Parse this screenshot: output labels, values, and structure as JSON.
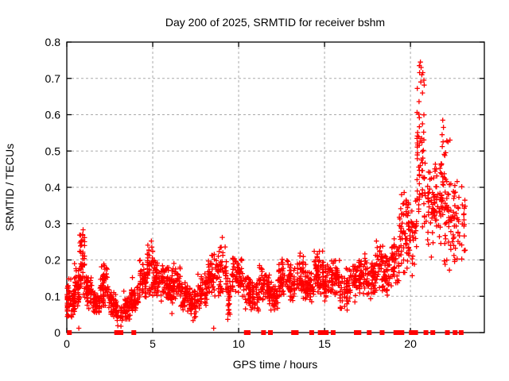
{
  "page": {
    "background": "#ffffff"
  },
  "chart_data": {
    "type": "scatter",
    "title": "Day 200 of 2025, SRMTID for receiver bshm",
    "xlabel": "GPS time / hours",
    "ylabel": "SRMTID / TECUs",
    "xlim": [
      0,
      24.3
    ],
    "ylim": [
      0,
      0.8
    ],
    "x_ticks": [
      0,
      5,
      10,
      15,
      20
    ],
    "y_ticks": [
      0,
      0.1,
      0.2,
      0.3,
      0.4,
      0.5,
      0.6,
      0.7,
      0.8
    ],
    "grid": "dashed",
    "legend": "none",
    "marker": "plus",
    "marker_color": "#ff0000",
    "grid_color": "#aaaaaa",
    "border_color": "#000000",
    "text_color": "#000000",
    "seed": 20250200,
    "clusters_format": "[hour_start, hour_end, value_min, value_max, point_count] — envelope of the dense + marker cloud read from the plot",
    "clusters": [
      [
        0.0,
        0.12,
        0.02,
        0.17,
        25
      ],
      [
        0.12,
        0.45,
        0.04,
        0.13,
        40
      ],
      [
        0.45,
        0.75,
        0.06,
        0.2,
        40
      ],
      [
        0.75,
        1.05,
        0.1,
        0.28,
        45
      ],
      [
        1.05,
        1.45,
        0.06,
        0.17,
        50
      ],
      [
        1.45,
        1.95,
        0.04,
        0.13,
        55
      ],
      [
        1.95,
        2.45,
        0.07,
        0.19,
        55
      ],
      [
        2.45,
        2.85,
        0.04,
        0.12,
        45
      ],
      [
        2.85,
        3.25,
        0.01,
        0.09,
        35
      ],
      [
        3.25,
        3.7,
        0.02,
        0.1,
        35
      ],
      [
        3.7,
        4.2,
        0.05,
        0.13,
        45
      ],
      [
        4.2,
        4.65,
        0.08,
        0.2,
        50
      ],
      [
        4.65,
        5.1,
        0.1,
        0.25,
        50
      ],
      [
        5.1,
        5.6,
        0.08,
        0.2,
        55
      ],
      [
        5.6,
        6.1,
        0.08,
        0.19,
        55
      ],
      [
        6.1,
        6.6,
        0.08,
        0.2,
        50
      ],
      [
        6.6,
        7.1,
        0.05,
        0.15,
        50
      ],
      [
        7.1,
        7.6,
        0.03,
        0.13,
        45
      ],
      [
        7.6,
        8.2,
        0.06,
        0.17,
        55
      ],
      [
        8.2,
        8.75,
        0.09,
        0.22,
        55
      ],
      [
        8.75,
        9.3,
        0.1,
        0.26,
        50
      ],
      [
        9.3,
        9.55,
        0.02,
        0.15,
        25
      ],
      [
        9.55,
        10.2,
        0.09,
        0.22,
        60
      ],
      [
        10.2,
        10.7,
        0.06,
        0.17,
        45
      ],
      [
        10.7,
        11.2,
        0.05,
        0.16,
        45
      ],
      [
        11.2,
        11.8,
        0.07,
        0.2,
        55
      ],
      [
        11.8,
        12.3,
        0.04,
        0.15,
        45
      ],
      [
        12.3,
        12.9,
        0.08,
        0.21,
        55
      ],
      [
        12.9,
        13.4,
        0.07,
        0.2,
        50
      ],
      [
        13.4,
        13.9,
        0.08,
        0.22,
        50
      ],
      [
        13.9,
        14.4,
        0.06,
        0.18,
        50
      ],
      [
        14.4,
        14.9,
        0.09,
        0.23,
        50
      ],
      [
        14.9,
        15.4,
        0.08,
        0.2,
        50
      ],
      [
        15.4,
        15.9,
        0.09,
        0.21,
        50
      ],
      [
        15.9,
        16.4,
        0.05,
        0.18,
        45
      ],
      [
        16.4,
        16.9,
        0.08,
        0.2,
        45
      ],
      [
        16.9,
        17.4,
        0.09,
        0.22,
        45
      ],
      [
        17.4,
        17.9,
        0.08,
        0.22,
        45
      ],
      [
        17.9,
        18.4,
        0.1,
        0.25,
        45
      ],
      [
        18.4,
        18.9,
        0.1,
        0.22,
        45
      ],
      [
        18.9,
        19.35,
        0.12,
        0.26,
        45
      ],
      [
        19.35,
        19.85,
        0.15,
        0.42,
        50
      ],
      [
        19.85,
        20.35,
        0.15,
        0.38,
        45
      ],
      [
        20.35,
        20.8,
        0.28,
        0.75,
        55
      ],
      [
        20.8,
        21.3,
        0.2,
        0.5,
        40
      ],
      [
        21.3,
        21.75,
        0.22,
        0.48,
        40
      ],
      [
        21.75,
        22.2,
        0.18,
        0.58,
        50
      ],
      [
        22.2,
        22.7,
        0.15,
        0.47,
        45
      ],
      [
        22.7,
        23.2,
        0.15,
        0.44,
        30
      ]
    ],
    "notable_points": [
      [
        20.58,
        0.745
      ],
      [
        20.52,
        0.735
      ],
      [
        20.62,
        0.73
      ],
      [
        20.66,
        0.71
      ],
      [
        20.6,
        0.69
      ],
      [
        21.88,
        0.585
      ],
      [
        21.92,
        0.565
      ],
      [
        21.84,
        0.545
      ],
      [
        22.3,
        0.53
      ],
      [
        0.95,
        0.283
      ],
      [
        0.92,
        0.27
      ],
      [
        9.05,
        0.262
      ],
      [
        4.92,
        0.252
      ],
      [
        18.02,
        0.252
      ],
      [
        0.7,
        0.012
      ],
      [
        8.55,
        0.012
      ]
    ],
    "zero_point_hours": [
      0.15,
      2.9,
      3.0,
      3.15,
      3.9,
      10.45,
      10.55,
      11.45,
      11.85,
      13.2,
      13.35,
      14.25,
      14.75,
      14.95,
      15.1,
      15.5,
      16.85,
      17.0,
      17.6,
      18.35,
      19.15,
      19.3,
      19.5,
      20.05,
      20.15,
      20.3,
      20.9,
      21.3,
      22.15,
      22.6,
      22.95
    ]
  }
}
